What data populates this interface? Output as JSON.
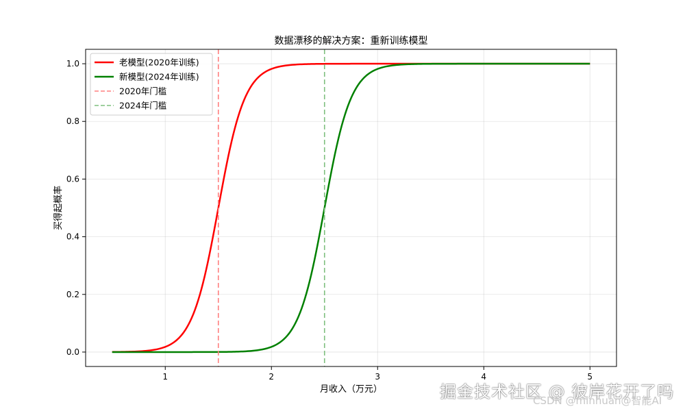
{
  "chart_data": {
    "type": "line",
    "title": "数据漂移的解决方案：重新训练模型",
    "xlabel": "月收入（万元）",
    "ylabel": "买得起概率",
    "xlim": [
      0.25,
      5.25
    ],
    "ylim": [
      -0.05,
      1.05
    ],
    "xticks": [
      1,
      2,
      3,
      4,
      5
    ],
    "yticks": [
      0.0,
      0.2,
      0.4,
      0.6,
      0.8,
      1.0
    ],
    "grid": true,
    "legend_position": "top-left",
    "series": [
      {
        "name": "老模型(2020年训练)",
        "color": "#ff0000",
        "style": "solid",
        "midpoint": 1.5,
        "steepness": 8,
        "x_range": [
          0.5,
          5.0
        ]
      },
      {
        "name": "新模型(2024年训练)",
        "color": "#008000",
        "style": "solid",
        "midpoint": 2.5,
        "steepness": 8,
        "x_range": [
          0.5,
          5.0
        ]
      }
    ],
    "vlines": [
      {
        "name": "2020年门槛",
        "x": 1.5,
        "color": "#ff7f7f",
        "style": "dashed"
      },
      {
        "name": "2024年门槛",
        "x": 2.5,
        "color": "#7fbf7f",
        "style": "dashed"
      }
    ]
  },
  "watermarks": {
    "site": "掘金技术社区 @ 彼岸花开了吗",
    "csdn": "CSDN @minhuan@智能AI"
  }
}
